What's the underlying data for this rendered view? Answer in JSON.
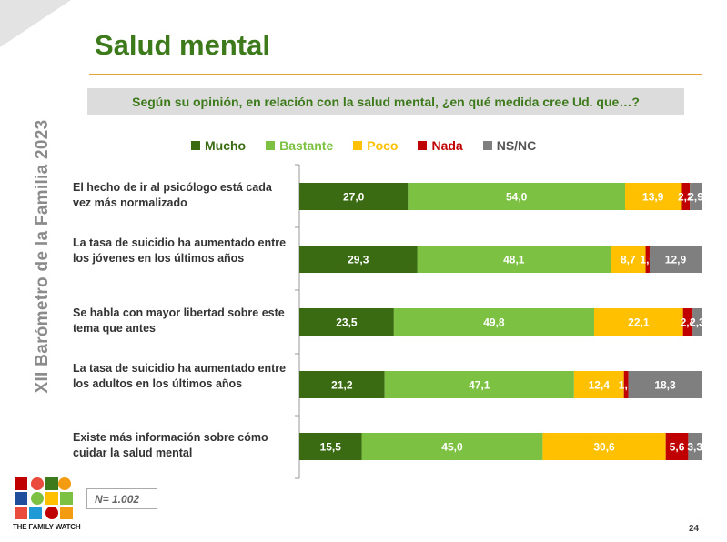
{
  "page": {
    "title": "Salud mental",
    "side_title": "XII  Barómetro de la Familia  2023",
    "question": "Según su opinión, en relación con la salud mental, ¿en qué medida cree Ud. que…?",
    "sample_note": "N= 1.002",
    "page_number": "24",
    "logo_text": "THE FAMILY WATCH"
  },
  "colors": {
    "title": "#3d7a1b",
    "accent_rule": "#e8a23a"
  },
  "chart_data": {
    "type": "bar",
    "orientation": "horizontal",
    "stacked": true,
    "xlim": [
      0,
      100
    ],
    "categories": [
      "El hecho de ir al psicólogo está cada vez más normalizado",
      "La tasa de suicidio ha aumentado entre los jóvenes en los últimos años",
      "Se habla con mayor libertad sobre este tema que antes",
      "La tasa de suicidio ha aumentado entre los adultos en los últimos años",
      "Existe más información sobre cómo cuidar la salud mental"
    ],
    "series": [
      {
        "name": "Mucho",
        "color": "#3a6b12",
        "values": [
          27.0,
          29.3,
          23.5,
          21.2,
          15.5
        ],
        "labels": [
          "27,0",
          "29,3",
          "23,5",
          "21,2",
          "15,5"
        ]
      },
      {
        "name": "Bastante",
        "color": "#7cc142",
        "values": [
          54.0,
          48.1,
          49.8,
          47.1,
          45.0
        ],
        "labels": [
          "54,0",
          "48,1",
          "49,8",
          "47,1",
          "45,0"
        ]
      },
      {
        "name": "Poco",
        "color": "#ffc000",
        "values": [
          13.9,
          8.7,
          22.1,
          12.4,
          30.6
        ],
        "labels": [
          "13,9",
          "8,7",
          "22,1",
          "12,4",
          "30,6"
        ]
      },
      {
        "name": "Nada",
        "color": "#c00000",
        "values": [
          2.2,
          1.0,
          2.4,
          1.1,
          5.6
        ],
        "labels": [
          "2,2",
          "1,0",
          "2,4",
          "1,1",
          "5,6"
        ]
      },
      {
        "name": "NS/NC",
        "color": "#7f7f7f",
        "values": [
          2.9,
          12.9,
          2.3,
          18.3,
          3.3
        ],
        "labels": [
          "2,9",
          "12,9",
          "2,3",
          "18,3",
          "3,3"
        ]
      }
    ],
    "legend": "top"
  }
}
